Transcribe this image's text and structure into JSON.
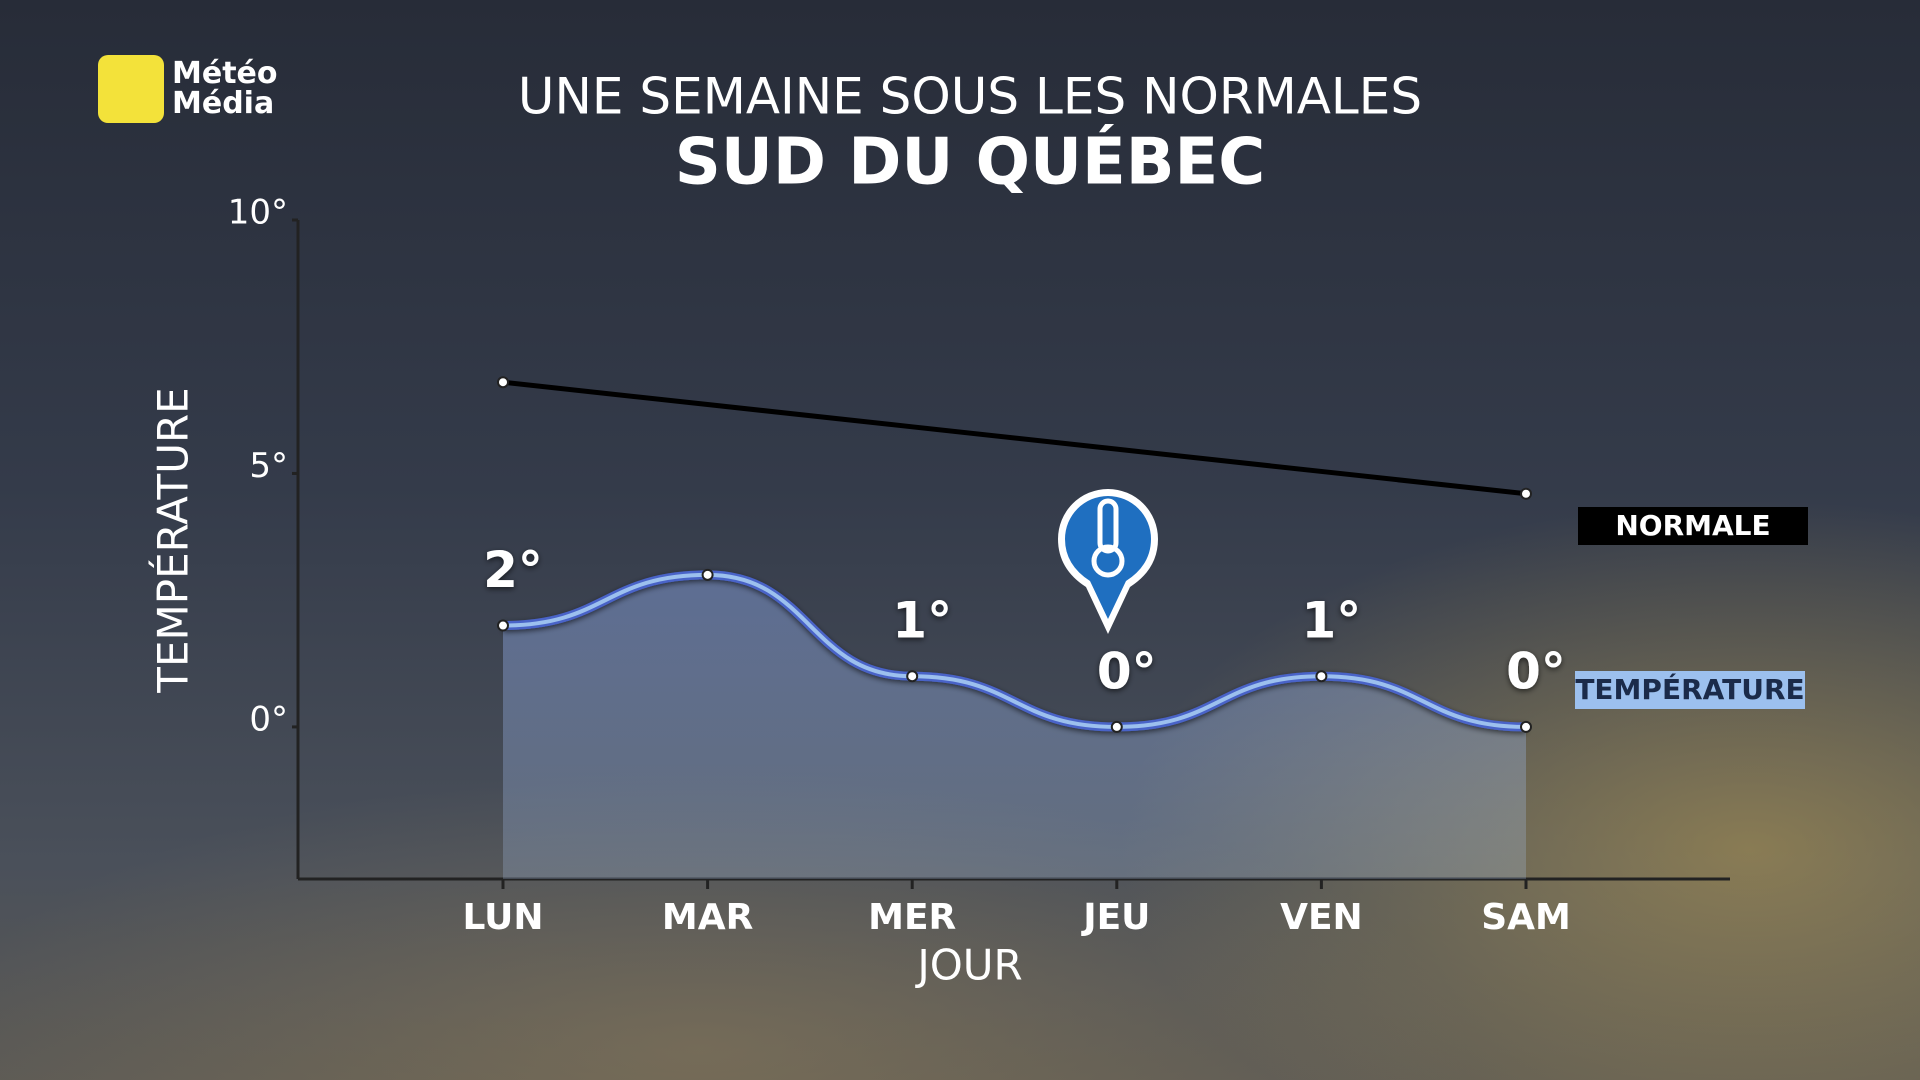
{
  "brand": "Météo Média",
  "chart_data": {
    "type": "line",
    "title": "UNE SEMAINE SOUS LES NORMALES",
    "subtitle": "SUD DU QUÉBEC",
    "x_label": "JOUR",
    "y_label": "TEMPÉRATURE",
    "categories": [
      "LUN",
      "MAR",
      "MER",
      "JEU",
      "VEN",
      "SAM"
    ],
    "series": [
      {
        "name": "NORMALE",
        "color": "#000000",
        "values": [
          6.8,
          6.36,
          5.92,
          5.48,
          5.04,
          4.6
        ]
      },
      {
        "name": "TEMPÉRATURE",
        "color": "#9cc0ee",
        "values": [
          2,
          3,
          1,
          0,
          1,
          0
        ],
        "value_labels": [
          "2°",
          null,
          "1°",
          "0°",
          "1°",
          "0°"
        ]
      }
    ],
    "ylim": [
      -3,
      10
    ],
    "yticks": [
      {
        "value": 0,
        "label": "0°"
      },
      {
        "value": 5,
        "label": "5°"
      },
      {
        "value": 10,
        "label": "10°"
      }
    ],
    "grid": false
  }
}
